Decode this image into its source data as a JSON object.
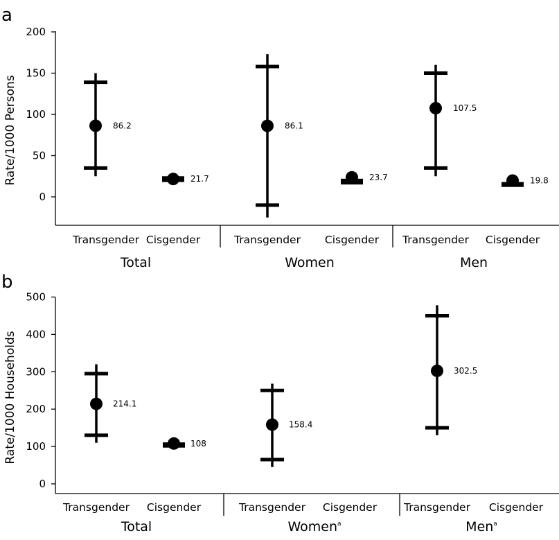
{
  "chart_data": [
    {
      "panel": "a",
      "type": "scatter",
      "subtype": "point-with-error-bars",
      "ylabel": "Rate/1000 Persons",
      "ylim": [
        -25,
        200
      ],
      "yticks": [
        0,
        50,
        100,
        150,
        200
      ],
      "groups": [
        {
          "name": "Total",
          "sup": ""
        },
        {
          "name": "Women",
          "sup": ""
        },
        {
          "name": "Men",
          "sup": ""
        }
      ],
      "points": [
        {
          "group": 0,
          "category": "Transgender",
          "value": 86.2,
          "label": "86.2",
          "ci_low": 35,
          "ci_high": 139,
          "whisker_low": 25,
          "whisker_high": 150
        },
        {
          "group": 0,
          "category": "Cisgender",
          "value": 21.7,
          "label": "21.7",
          "ci_low": 18,
          "ci_high": 25,
          "whisker_low": 18,
          "whisker_high": 25
        },
        {
          "group": 1,
          "category": "Transgender",
          "value": 86.1,
          "label": "86.1",
          "ci_low": -10,
          "ci_high": 158,
          "whisker_low": -25,
          "whisker_high": 173
        },
        {
          "group": 1,
          "category": "Cisgender",
          "value": 23.7,
          "label": "23.7",
          "ci_low": 15,
          "ci_high": 22,
          "whisker_low": 15,
          "whisker_high": 22
        },
        {
          "group": 2,
          "category": "Transgender",
          "value": 107.5,
          "label": "107.5",
          "ci_low": 35,
          "ci_high": 150,
          "whisker_low": 25,
          "whisker_high": 160
        },
        {
          "group": 2,
          "category": "Cisgender",
          "value": 19.8,
          "label": "19.8",
          "ci_low": 12,
          "ci_high": 18,
          "whisker_low": 12,
          "whisker_high": 18
        }
      ]
    },
    {
      "panel": "b",
      "type": "scatter",
      "subtype": "point-with-error-bars",
      "ylabel": "Rate/1000 Households",
      "ylim": [
        0,
        500
      ],
      "yticks": [
        0,
        100,
        200,
        300,
        400,
        500
      ],
      "groups": [
        {
          "name": "Total",
          "sup": ""
        },
        {
          "name": "Women",
          "sup": "a"
        },
        {
          "name": "Men",
          "sup": "a"
        }
      ],
      "points": [
        {
          "group": 0,
          "category": "Transgender",
          "value": 214.1,
          "label": "214.1",
          "ci_low": 130,
          "ci_high": 295,
          "whisker_low": 110,
          "whisker_high": 320
        },
        {
          "group": 0,
          "category": "Cisgender",
          "value": 108,
          "label": "108",
          "ci_low": 97,
          "ci_high": 111,
          "whisker_low": 97,
          "whisker_high": 111
        },
        {
          "group": 1,
          "category": "Transgender",
          "value": 158.4,
          "label": "158.4",
          "ci_low": 65,
          "ci_high": 250,
          "whisker_low": 45,
          "whisker_high": 268
        },
        {
          "group": 1,
          "category": "Cisgender",
          "value": null,
          "label": null
        },
        {
          "group": 2,
          "category": "Transgender",
          "value": 302.5,
          "label": "302.5",
          "ci_low": 150,
          "ci_high": 450,
          "whisker_low": 130,
          "whisker_high": 478
        },
        {
          "group": 2,
          "category": "Cisgender",
          "value": null,
          "label": null
        }
      ]
    }
  ]
}
